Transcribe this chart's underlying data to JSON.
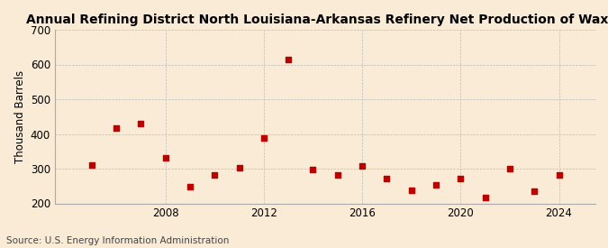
{
  "title": "Annual Refining District North Louisiana-Arkansas Refinery Net Production of Waxes",
  "ylabel": "Thousand Barrels",
  "source": "Source: U.S. Energy Information Administration",
  "background_color": "#faebd7",
  "years": [
    2005,
    2006,
    2007,
    2008,
    2009,
    2010,
    2011,
    2012,
    2013,
    2014,
    2015,
    2016,
    2017,
    2018,
    2019,
    2020,
    2021,
    2022,
    2023,
    2024
  ],
  "values": [
    310,
    418,
    430,
    330,
    248,
    282,
    302,
    388,
    614,
    297,
    283,
    308,
    272,
    238,
    253,
    272,
    218,
    300,
    235,
    282
  ],
  "marker_color": "#bb0000",
  "marker_size": 25,
  "ylim": [
    200,
    700
  ],
  "yticks": [
    200,
    300,
    400,
    500,
    600,
    700
  ],
  "xlim": [
    2003.5,
    2025.5
  ],
  "xticks": [
    2008,
    2012,
    2016,
    2020,
    2024
  ],
  "grid_color": "#bbbbbb",
  "title_fontsize": 10,
  "axis_fontsize": 8.5,
  "source_fontsize": 7.5
}
